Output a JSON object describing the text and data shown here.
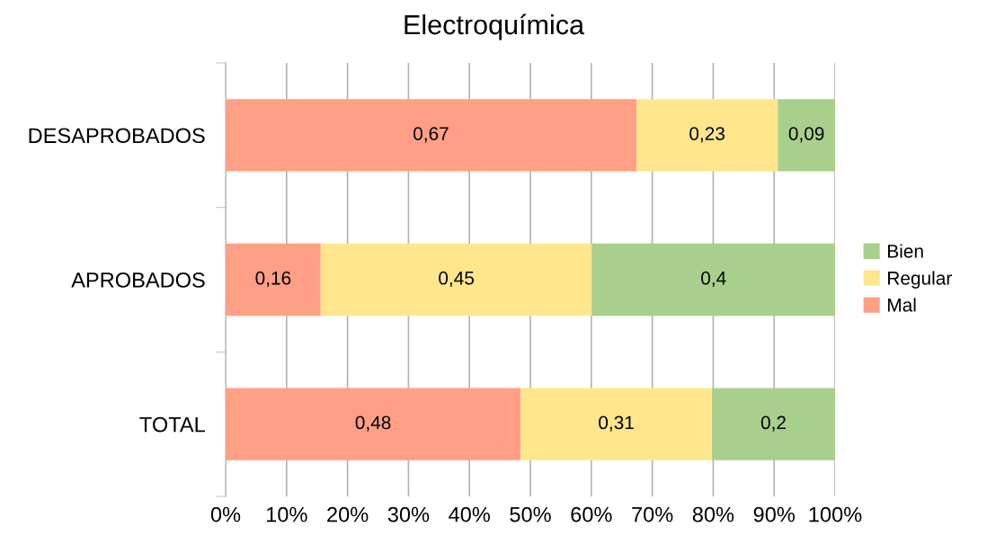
{
  "chart_data": {
    "type": "bar",
    "title": "Electroquímica",
    "orientation": "horizontal",
    "stacked": true,
    "categories": [
      "DESAPROBADOS",
      "APROBADOS",
      "TOTAL"
    ],
    "series": [
      {
        "name": "Mal",
        "color": "#ff9f86",
        "values": [
          0.674,
          0.156,
          0.484
        ],
        "value_labels": [
          "0,67",
          "0,16",
          "0,48"
        ]
      },
      {
        "name": "Regular",
        "color": "#ffe68d",
        "values": [
          0.232,
          0.445,
          0.314
        ],
        "value_labels": [
          "0,23",
          "0,45",
          "0,31"
        ]
      },
      {
        "name": "Bien",
        "color": "#a9cf8c",
        "values": [
          0.094,
          0.399,
          0.202
        ],
        "value_labels": [
          "0,09",
          "0,4",
          "0,2"
        ]
      }
    ],
    "xlim": [
      0,
      1
    ],
    "xticks": [
      {
        "value": 0,
        "label": "0%"
      },
      {
        "value": 0.1,
        "label": "10%"
      },
      {
        "value": 0.2,
        "label": "20%"
      },
      {
        "value": 0.3,
        "label": "30%"
      },
      {
        "value": 0.4,
        "label": "40%"
      },
      {
        "value": 0.5,
        "label": "50%"
      },
      {
        "value": 0.6,
        "label": "60%"
      },
      {
        "value": 0.7,
        "label": "70%"
      },
      {
        "value": 0.8,
        "label": "80%"
      },
      {
        "value": 0.9,
        "label": "90%"
      },
      {
        "value": 1,
        "label": "100%"
      }
    ],
    "grid": "x",
    "legend": "right"
  }
}
